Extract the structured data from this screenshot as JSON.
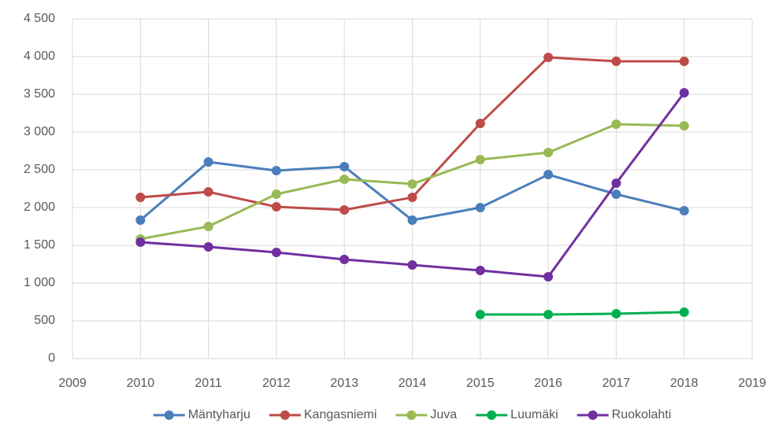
{
  "chart_data": {
    "type": "line",
    "x": [
      2010,
      2011,
      2012,
      2013,
      2014,
      2015,
      2016,
      2017,
      2018
    ],
    "series": [
      {
        "name": "Mäntyharju",
        "color": "#4a7ebb",
        "values": [
          1833,
          2604,
          2490,
          2542,
          1833,
          2000,
          2437,
          2177,
          1958
        ]
      },
      {
        "name": "Kangasniemi",
        "color": "#be4b48",
        "values": [
          2135,
          2208,
          2010,
          1969,
          2135,
          3115,
          3990,
          3938,
          3938
        ]
      },
      {
        "name": "Juva",
        "color": "#98b954",
        "values": [
          1583,
          1750,
          2177,
          2375,
          2313,
          2635,
          2729,
          3104,
          3083
        ]
      },
      {
        "name": "Luumäki",
        "color": "#00b050",
        "values": [
          null,
          null,
          null,
          null,
          null,
          583,
          583,
          594,
          615
        ]
      },
      {
        "name": "Ruokolahti",
        "color": "#7030a0",
        "values": [
          1542,
          1479,
          1406,
          1313,
          1240,
          1167,
          1083,
          2323,
          3521
        ]
      }
    ],
    "xlim": [
      2009,
      2019
    ],
    "xticks": [
      2009,
      2010,
      2011,
      2012,
      2013,
      2014,
      2015,
      2016,
      2017,
      2018,
      2019
    ],
    "ylim": [
      0,
      4500
    ],
    "yticks": [
      0,
      500,
      {
        "value": 1000,
        "label": "1 000"
      },
      {
        "value": 1500,
        "label": "1 500"
      },
      {
        "value": 2000,
        "label": "2 000"
      },
      {
        "value": 2500,
        "label": "2 500"
      },
      {
        "value": 3000,
        "label": "3 000"
      },
      {
        "value": 3500,
        "label": "3 500"
      },
      {
        "value": 4000,
        "label": "4 000"
      },
      {
        "value": 4500,
        "label": "4 500"
      }
    ],
    "grid": true,
    "legend": "bottom"
  }
}
